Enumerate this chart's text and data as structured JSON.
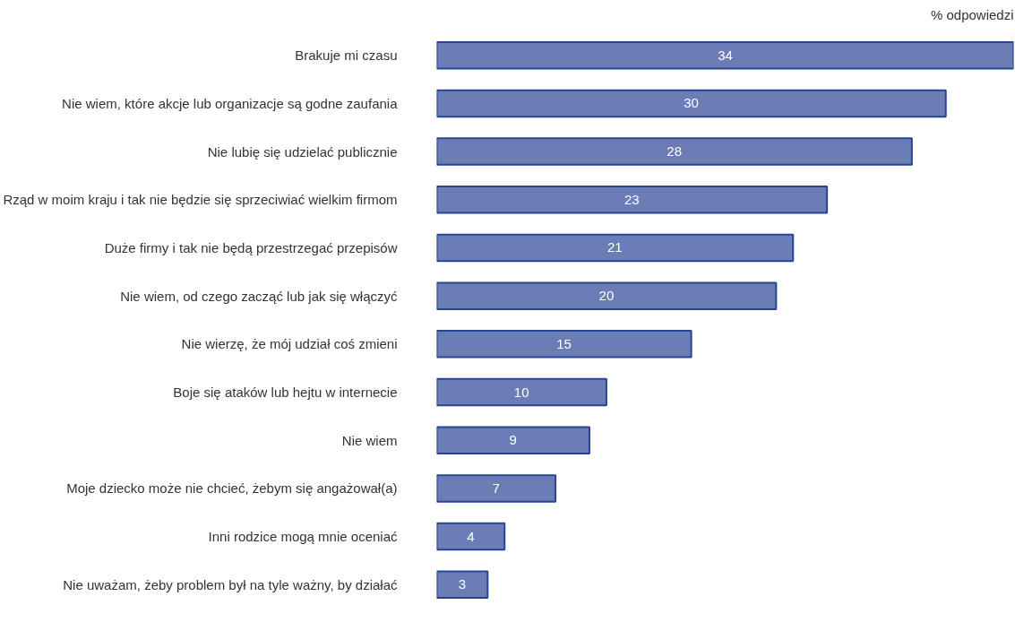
{
  "chart_data": {
    "type": "bar",
    "orientation": "horizontal",
    "xlabel": "% odpowiedzi",
    "categories": [
      "Brakuje mi czasu",
      "Nie wiem, które akcje lub organizacje są godne zaufania",
      "Nie lubię się udzielać publicznie",
      "Rząd w moim kraju i tak nie będzie się sprzeciwiać wielkim firmom",
      "Duże firmy i tak nie będą przestrzegać przepisów",
      "Nie wiem, od czego zacząć lub jak się włączyć",
      "Nie wierzę, że mój udział coś zmieni",
      "Boje się ataków lub hejtu w internecie",
      "Nie wiem",
      "Moje dziecko może nie chcieć, żebym się angażował(a)",
      "Inni rodzice mogą mnie oceniać",
      "Nie uważam, żeby problem był na tyle ważny, by działać"
    ],
    "series": [
      {
        "color": "#6a7db5",
        "values": [
          34,
          30,
          28,
          23,
          21,
          20,
          15,
          10,
          9,
          7,
          4,
          3
        ]
      }
    ],
    "xlim": [
      0,
      34
    ],
    "data_labels": true,
    "tick_labels": "y",
    "grid": false
  }
}
